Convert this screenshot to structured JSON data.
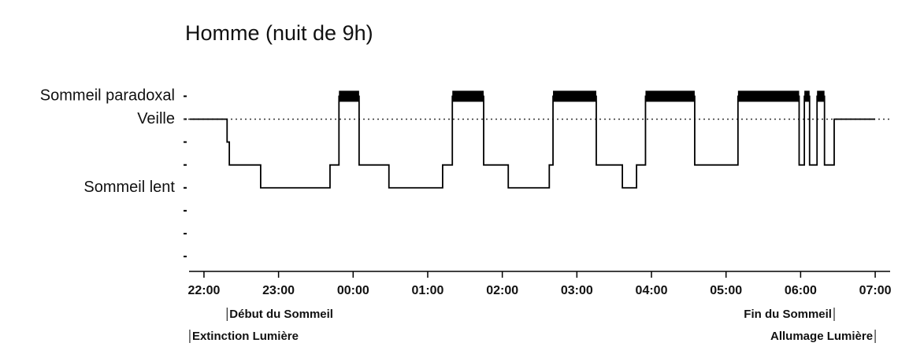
{
  "chart_data": {
    "type": "hypnogram",
    "title": "Homme (nuit de 9h)",
    "x": [
      21.81,
      22.31,
      22.34,
      22.76,
      23.69,
      23.81,
      24.08,
      24.48,
      25.2,
      25.33,
      25.75,
      26.08,
      26.63,
      26.68,
      27.26,
      27.61,
      27.8,
      27.92,
      28.58,
      29.16,
      29.98,
      30.05,
      30.12,
      30.22,
      30.32,
      30.45,
      31
    ],
    "values": [
      0,
      -1,
      -2,
      -3,
      -2,
      1,
      -2,
      -3,
      -2,
      1,
      -2,
      -3,
      -2,
      1,
      -2,
      -3,
      -2,
      1,
      -2,
      1,
      -2,
      1,
      -2,
      1,
      -2,
      0,
      0
    ],
    "color": "#000000",
    "xlim": [
      21.8,
      31.2
    ],
    "xticks": [
      {
        "value": 22,
        "label": "22:00"
      },
      {
        "value": 23,
        "label": "23:00"
      },
      {
        "value": 24,
        "label": "00:00"
      },
      {
        "value": 25,
        "label": "01:00"
      },
      {
        "value": 26,
        "label": "02:00"
      },
      {
        "value": 27,
        "label": "03:00"
      },
      {
        "value": 28,
        "label": "04:00"
      },
      {
        "value": 29,
        "label": "05:00"
      },
      {
        "value": 30,
        "label": "06:00"
      },
      {
        "value": 31,
        "label": "07:00"
      }
    ],
    "ylim": [
      -6.65,
      1.7
    ],
    "yticks": [
      1,
      0,
      -1,
      -2,
      -3,
      -4,
      -5,
      -6
    ],
    "y_labels": [
      {
        "value": 1,
        "label": "Sommeil paradoxal"
      },
      {
        "value": 0,
        "label": "Veille"
      },
      {
        "value": -3,
        "label": "Sommeil lent"
      }
    ],
    "reference_line": 0,
    "annotations": [
      {
        "text": "Début du Sommeil",
        "x": 22.31,
        "row": 1,
        "align": "left"
      },
      {
        "text": "Extinction Lumière",
        "x": 21.81,
        "row": 2,
        "align": "left"
      },
      {
        "text": "Fin du Sommeil",
        "x": 30.45,
        "row": 1,
        "align": "right"
      },
      {
        "text": "Allumage Lumière",
        "x": 31,
        "row": 2,
        "align": "right"
      }
    ]
  }
}
